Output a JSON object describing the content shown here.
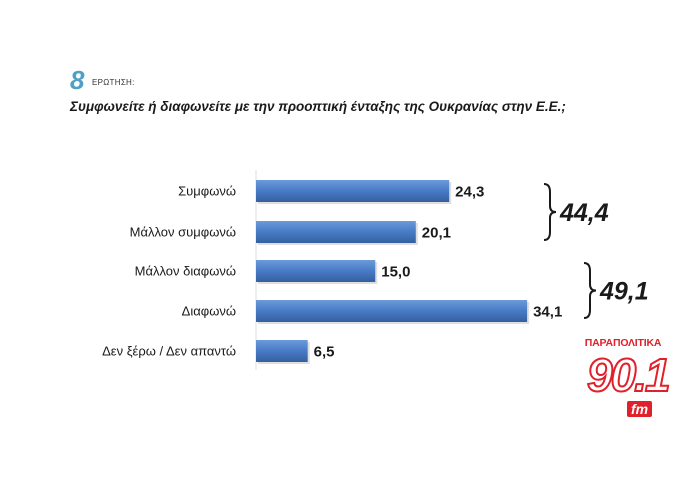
{
  "header": {
    "question_number": "8",
    "question_label": "ΕΡΩΤΗΣΗ:",
    "question_text": "Συμφωνείτε ή διαφωνείτε με την προοπτική ένταξης της Ουκρανίας στην Ε.Ε.;"
  },
  "chart_data": {
    "type": "bar",
    "orientation": "horizontal",
    "categories": [
      "Συμφωνώ",
      "Μάλλον συμφωνώ",
      "Μάλλον διαφωνώ",
      "Διαφωνώ",
      "Δεν ξέρω / Δεν απαντώ"
    ],
    "values": [
      24.3,
      20.1,
      15.0,
      34.1,
      6.5
    ],
    "value_labels": [
      "24,3",
      "20,1",
      "15,0",
      "34,1",
      "6,5"
    ],
    "xlim": [
      0,
      40
    ],
    "grid": false,
    "bar_color": "#4a7ec9",
    "groups": [
      {
        "label": "44,4",
        "from": 0,
        "to": 1
      },
      {
        "label": "49,1",
        "from": 2,
        "to": 3
      }
    ]
  },
  "logo": {
    "top_text": "ΠΑΡΑΠΟΛΙΤΙΚΑ",
    "frequency": "90.1",
    "suffix": "fm",
    "color": "#e0202a"
  }
}
